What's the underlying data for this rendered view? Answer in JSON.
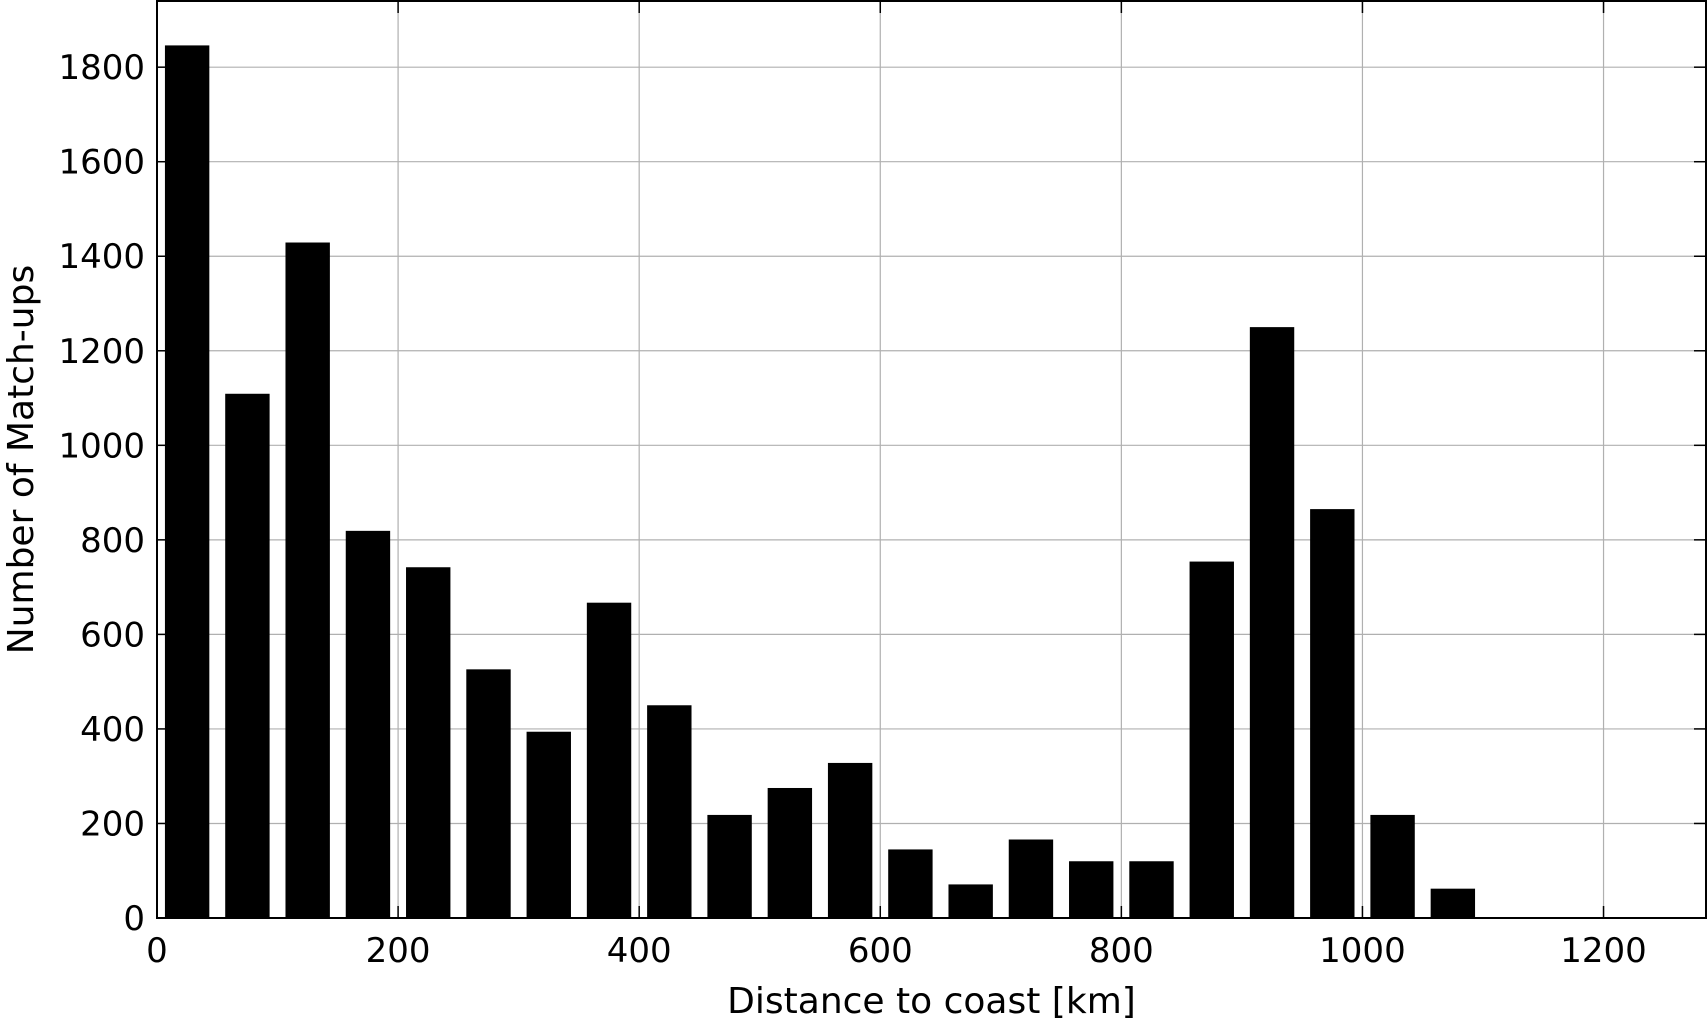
{
  "chart_data": {
    "type": "bar",
    "title": "",
    "xlabel": "Distance to coast [km]",
    "ylabel": "Number of Match-ups",
    "xlim": [
      0,
      1285
    ],
    "ylim": [
      0,
      1940
    ],
    "xticks": [
      0,
      200,
      400,
      600,
      800,
      1000,
      1200
    ],
    "yticks": [
      0,
      200,
      400,
      600,
      800,
      1000,
      1200,
      1400,
      1600,
      1800
    ],
    "grid": true,
    "bin_width": 50,
    "bar_width": 36,
    "bar_color": "#000000",
    "x": [
      25,
      75,
      125,
      175,
      225,
      275,
      325,
      375,
      425,
      475,
      525,
      575,
      625,
      675,
      725,
      775,
      825,
      875,
      925,
      975,
      1025,
      1075
    ],
    "values": [
      1845,
      1108,
      1428,
      818,
      741,
      525,
      393,
      666,
      449,
      217,
      274,
      327,
      144,
      70,
      165,
      119,
      119,
      753,
      1249,
      864,
      217,
      61
    ]
  }
}
